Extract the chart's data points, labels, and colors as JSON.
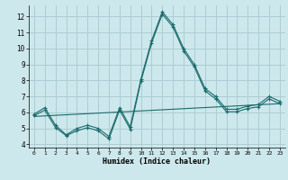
{
  "xlabel": "Humidex (Indice chaleur)",
  "bg_color": "#cde8ec",
  "grid_color": "#aacdd4",
  "line_color": "#1a6b6b",
  "xlim": [
    -0.5,
    23.5
  ],
  "ylim": [
    3.8,
    12.7
  ],
  "yticks": [
    4,
    5,
    6,
    7,
    8,
    9,
    10,
    11,
    12
  ],
  "xticks": [
    0,
    1,
    2,
    3,
    4,
    5,
    6,
    7,
    8,
    9,
    10,
    11,
    12,
    13,
    14,
    15,
    16,
    17,
    18,
    19,
    20,
    21,
    22,
    23
  ],
  "series1_x": [
    0,
    1,
    2,
    3,
    4,
    5,
    6,
    7,
    8,
    9,
    10,
    11,
    12,
    13,
    14,
    15,
    16,
    17,
    18,
    19,
    20,
    21,
    22,
    23
  ],
  "series1_y": [
    5.9,
    6.3,
    5.2,
    4.6,
    5.0,
    5.2,
    5.0,
    4.5,
    6.3,
    5.1,
    8.1,
    10.5,
    12.3,
    11.5,
    10.0,
    9.0,
    7.5,
    7.0,
    6.2,
    6.2,
    6.4,
    6.5,
    7.0,
    6.7
  ],
  "series2_x": [
    0,
    1,
    2,
    3,
    4,
    5,
    6,
    7,
    8,
    9,
    10,
    11,
    12,
    13,
    14,
    15,
    16,
    17,
    18,
    19,
    20,
    21,
    22,
    23
  ],
  "series2_y": [
    5.8,
    6.15,
    5.05,
    4.55,
    4.85,
    5.05,
    4.85,
    4.35,
    6.15,
    4.95,
    7.95,
    10.35,
    12.15,
    11.35,
    9.85,
    8.85,
    7.35,
    6.85,
    6.05,
    6.05,
    6.25,
    6.35,
    6.85,
    6.55
  ],
  "series3_x": [
    0,
    23
  ],
  "series3_y": [
    5.75,
    6.55
  ]
}
